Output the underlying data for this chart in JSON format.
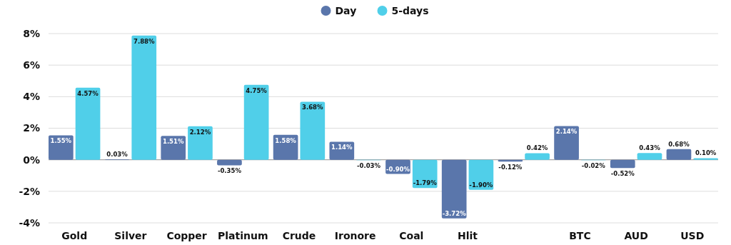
{
  "chart_data": {
    "type": "bar",
    "categories": [
      "Gold",
      "Silver",
      "Copper",
      "Platinum",
      "Crude",
      "Ironore",
      "Coal",
      "Hlit",
      null,
      "BTC",
      "AUD",
      "USD"
    ],
    "series": [
      {
        "name": "Day",
        "color": "#5a76ab",
        "values": [
          1.55,
          0.03,
          1.51,
          -0.35,
          1.58,
          1.14,
          -0.9,
          -3.72,
          -0.12,
          2.14,
          -0.52,
          0.68
        ],
        "value_labels": [
          "1.55%",
          "0.03%",
          "1.51%",
          "-0.35%",
          "1.58%",
          "1.14%",
          "-0.90%",
          "-3.72%",
          "-0.12%",
          "2.14%",
          "-0.52%",
          "0.68%"
        ]
      },
      {
        "name": "5-days",
        "color": "#50cfe9",
        "values": [
          4.57,
          7.88,
          2.12,
          4.75,
          3.68,
          -0.03,
          -1.79,
          -1.9,
          0.42,
          -0.02,
          0.43,
          0.1
        ],
        "value_labels": [
          "4.57%",
          "7.88%",
          "2.12%",
          "4.75%",
          "3.68%",
          "-0.03%",
          "-1.79%",
          "-1.90%",
          "0.42%",
          "-0.02%",
          "0.43%",
          "0.10%"
        ]
      }
    ],
    "ylim": [
      -4,
      8
    ],
    "yticks": [
      {
        "value": -4,
        "label": "-4%"
      },
      {
        "value": -2,
        "label": "-2%"
      },
      {
        "value": 0,
        "label": "0%"
      },
      {
        "value": 2,
        "label": "2%"
      },
      {
        "value": 4,
        "label": "4%"
      },
      {
        "value": 6,
        "label": "6%"
      },
      {
        "value": 8,
        "label": "8%"
      }
    ],
    "grid": "y",
    "legend": "top"
  }
}
